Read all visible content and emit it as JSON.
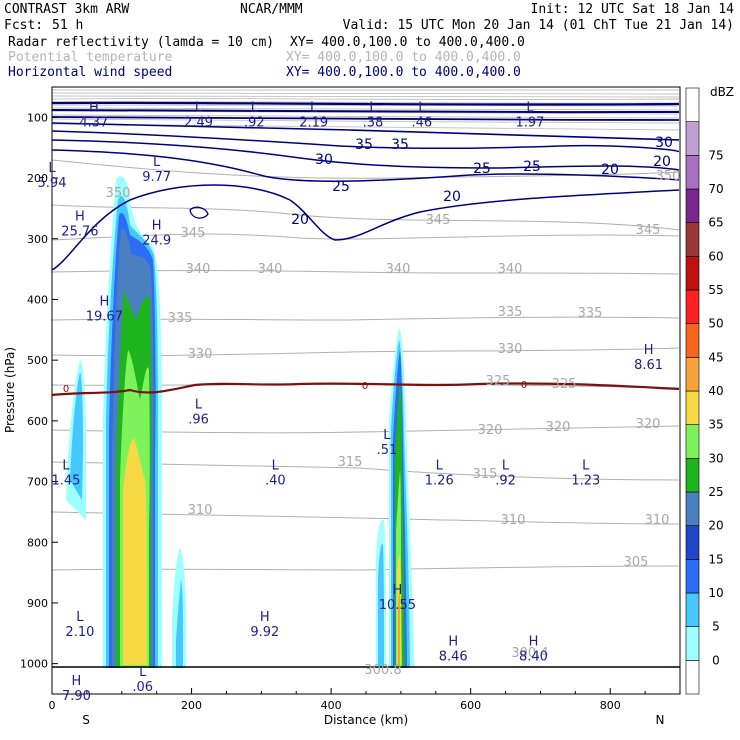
{
  "header": {
    "model_left": "CONTRAST  3km ARW",
    "center": "NCAR/MMM",
    "init": "Init: 12 UTC Sat 18 Jan 14",
    "fcst_label": "Fcst:",
    "fcst_value": "51 h",
    "valid": "Valid: 15 UTC Mon 20 Jan 14 (01 ChT Tue 21 Jan 14)",
    "fields": [
      {
        "name": "Radar reflectivity (lamda = 10 cm)",
        "xy": "XY= 400.0,100.0 to 400.0,400.0",
        "color": "#000000"
      },
      {
        "name": "Potential temperature",
        "xy": "XY= 400.0,100.0 to 400.0,400.0",
        "color": "#b4b4b4"
      },
      {
        "name": "Horizontal wind speed",
        "xy": "XY= 400.0,100.0 to 400.0,400.0",
        "color": "#00007e"
      }
    ]
  },
  "chart_data": {
    "type": "cross-section",
    "xlabel": "Distance (km)",
    "ylabel": "Pressure (hPa)",
    "xlim": [
      0,
      900
    ],
    "ylim": [
      1050,
      50
    ],
    "x_ticks": [
      "0",
      "200",
      "400",
      "600",
      "800"
    ],
    "y_ticks": [
      "100",
      "200",
      "300",
      "400",
      "500",
      "600",
      "700",
      "800",
      "900",
      "1000"
    ],
    "end_labels": {
      "left": "S",
      "right": "N"
    },
    "colorbar": {
      "unit": "dBZ",
      "levels": [
        "0",
        "5",
        "10",
        "15",
        "20",
        "25",
        "30",
        "35",
        "40",
        "45",
        "50",
        "55",
        "60",
        "65",
        "70",
        "75"
      ],
      "colors": [
        "#ffffff",
        "#9ffeff",
        "#46c8ff",
        "#2c6cf6",
        "#2046c8",
        "#4a7fc0",
        "#1db41d",
        "#7ef25a",
        "#f7d946",
        "#f9a23c",
        "#f6651e",
        "#ff2020",
        "#c01010",
        "#9a3838",
        "#7a2890",
        "#a870c0",
        "#c0a0d0",
        "#ffffff"
      ]
    },
    "theta_labels": [
      "350",
      "350",
      "345",
      "345",
      "345",
      "340",
      "340",
      "340",
      "340",
      "335",
      "335",
      "335",
      "330",
      "330",
      "325",
      "325",
      "320",
      "320",
      "320",
      "315",
      "315",
      "310",
      "310",
      "310",
      "305",
      "300.4",
      "300.8"
    ],
    "wind_labels": [
      "35",
      "35",
      "30",
      "30",
      "25",
      "25",
      "25",
      "20",
      "20",
      "20",
      "20"
    ],
    "freezing_label": "0",
    "extrema": [
      {
        "type": "H",
        "value": "4.37",
        "x": 60,
        "p": 90
      },
      {
        "type": "L",
        "value": "2.49",
        "x": 210,
        "p": 90
      },
      {
        "type": "L",
        "value": ".92",
        "x": 290,
        "p": 90
      },
      {
        "type": "L",
        "value": "2.19",
        "x": 375,
        "p": 90
      },
      {
        "type": "L",
        "value": ".38",
        "x": 460,
        "p": 90
      },
      {
        "type": "L",
        "value": ".46",
        "x": 530,
        "p": 90
      },
      {
        "type": "L",
        "value": "1.97",
        "x": 685,
        "p": 90
      },
      {
        "type": "L",
        "value": "5.94",
        "x": 0,
        "p": 190
      },
      {
        "type": "L",
        "value": "9.77",
        "x": 150,
        "p": 180
      },
      {
        "type": "H",
        "value": "25.76",
        "x": 40,
        "p": 270
      },
      {
        "type": "H",
        "value": "24.9",
        "x": 150,
        "p": 285
      },
      {
        "type": "H",
        "value": "19.67",
        "x": 75,
        "p": 410
      },
      {
        "type": "H",
        "value": "8.61",
        "x": 855,
        "p": 490
      },
      {
        "type": "L",
        "value": ".96",
        "x": 210,
        "p": 580
      },
      {
        "type": "L",
        "value": ".51",
        "x": 480,
        "p": 630
      },
      {
        "type": "L",
        "value": "1.45",
        "x": 20,
        "p": 680
      },
      {
        "type": "L",
        "value": ".40",
        "x": 320,
        "p": 680
      },
      {
        "type": "L",
        "value": "1.26",
        "x": 555,
        "p": 680
      },
      {
        "type": "L",
        "value": ".92",
        "x": 650,
        "p": 680
      },
      {
        "type": "L",
        "value": "1.23",
        "x": 765,
        "p": 680
      },
      {
        "type": "H",
        "value": "10.55",
        "x": 495,
        "p": 885
      },
      {
        "type": "L",
        "value": "2.10",
        "x": 40,
        "p": 930
      },
      {
        "type": "H",
        "value": "9.92",
        "x": 305,
        "p": 930
      },
      {
        "type": "H",
        "value": "8.46",
        "x": 575,
        "p": 970
      },
      {
        "type": "H",
        "value": "8.40",
        "x": 690,
        "p": 970
      },
      {
        "type": "L",
        "value": ".06",
        "x": 130,
        "p": 1020
      },
      {
        "type": "H",
        "value": "7.90",
        "x": 35,
        "p": 1035
      }
    ]
  }
}
